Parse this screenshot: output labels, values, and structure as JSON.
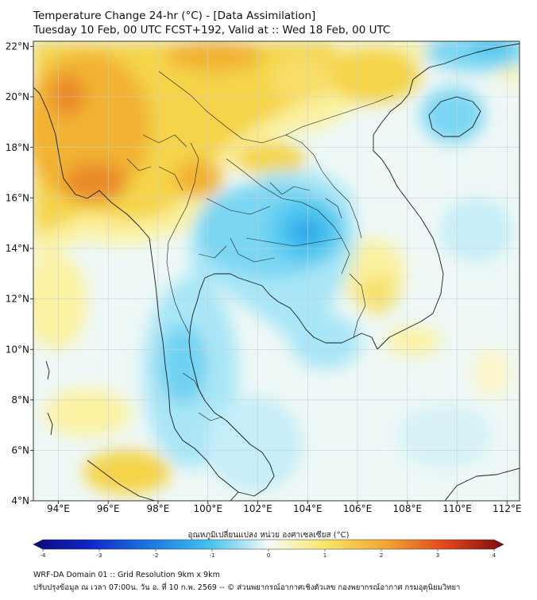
{
  "title": {
    "line1": "Temperature Change 24-hr (°C) - [Data Assimilation]",
    "line2": "Tuesday 10 Feb, 00 UTC FCST+192, Valid at :: Wed 18 Feb, 00 UTC"
  },
  "axes": {
    "lat_labels": [
      "22°N",
      "20°N",
      "18°N",
      "16°N",
      "14°N",
      "12°N",
      "10°N",
      "8°N",
      "6°N",
      "4°N"
    ],
    "lon_labels": [
      "94°E",
      "96°E",
      "98°E",
      "100°E",
      "102°E",
      "104°E",
      "106°E",
      "108°E",
      "110°E",
      "112°E"
    ],
    "lat_values": [
      22,
      20,
      18,
      16,
      14,
      12,
      10,
      8,
      6,
      4
    ],
    "lon_values": [
      94,
      96,
      98,
      100,
      102,
      104,
      106,
      108,
      110,
      112
    ],
    "lat_range": [
      4,
      22.2
    ],
    "lon_range": [
      93,
      112.5
    ]
  },
  "colorbar": {
    "label": "อุณหภูมิเปลี่ยนแปลง หน่วย องศาเซลเซียส (°C)",
    "ticks": [
      "-4",
      "-3",
      "-2",
      "-1",
      "0",
      "1",
      "2",
      "3",
      "4"
    ],
    "range": [
      -4,
      4
    ]
  },
  "colors": {
    "cold_strong": "#1f8fe6",
    "cold": "#4fc6f0",
    "cold_light": "#a9e6f7",
    "neutral": "#eef8f6",
    "warm_light": "#fbf2a2",
    "warm": "#f5d44a",
    "warm_strong": "#f2b233",
    "hot": "#e77d2b"
  },
  "footer": {
    "line1": "WRF-DA Domain 01 :: Grid Resolution 9km x 9km",
    "line2": "ปรับปรุงข้อมูล ณ เวลา 07:00น. วัน อ. ที่ 10 ก.พ. 2569 -- © ส่วนพยากรณ์อากาศเชิงตัวเลข กองพยากรณ์อากาศ กรมอุตุนิยมวิทยา"
  }
}
